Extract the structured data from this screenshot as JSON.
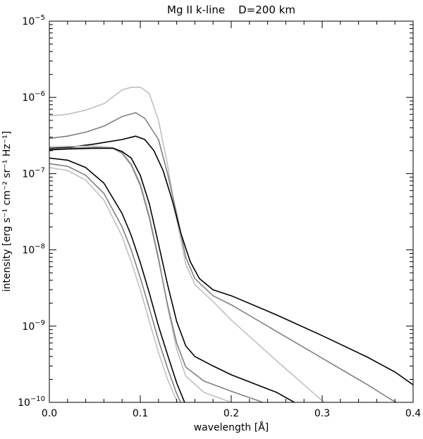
{
  "chart_data": {
    "type": "line",
    "title": "Mg II k-line    D=200 km",
    "xlabel": "wavelength [Å]",
    "ylabel": "intensity [erg s⁻¹ cm⁻² sr⁻¹ Hz⁻¹]",
    "xlim": [
      0.0,
      0.4
    ],
    "ylim": [
      1e-10,
      1e-05
    ],
    "yscale": "log",
    "xticks": [
      0.0,
      0.1,
      0.2,
      0.3,
      0.4
    ],
    "xtick_labels": [
      "0.0",
      "0.1",
      "0.2",
      "0.3",
      "0.4"
    ],
    "ytick_exponents": [
      -10,
      -9,
      -8,
      -7,
      -6,
      -5
    ],
    "grid": false,
    "series": [
      {
        "color": "#c0c0c0",
        "points": [
          [
            0,
            5.7e-07
          ],
          [
            0.02,
            6e-07
          ],
          [
            0.04,
            6.8e-07
          ],
          [
            0.06,
            8.3e-07
          ],
          [
            0.08,
            1.25e-06
          ],
          [
            0.09,
            1.36e-06
          ],
          [
            0.1,
            1.36e-06
          ],
          [
            0.11,
            1.12e-06
          ],
          [
            0.12,
            5e-07
          ],
          [
            0.13,
            1.3e-07
          ],
          [
            0.14,
            2.5e-08
          ],
          [
            0.15,
            6.5e-09
          ],
          [
            0.16,
            3.5e-09
          ],
          [
            0.18,
            2.1e-09
          ],
          [
            0.2,
            1.2e-09
          ],
          [
            0.25,
            3.5e-10
          ],
          [
            0.3,
            1.05e-10
          ],
          [
            0.31,
            8.5e-11
          ]
        ]
      },
      {
        "color": "#808080",
        "points": [
          [
            0,
            2.9e-07
          ],
          [
            0.02,
            3.1e-07
          ],
          [
            0.04,
            3.5e-07
          ],
          [
            0.06,
            4.2e-07
          ],
          [
            0.08,
            5.6e-07
          ],
          [
            0.095,
            6.3e-07
          ],
          [
            0.105,
            5.3e-07
          ],
          [
            0.12,
            2.8e-07
          ],
          [
            0.13,
            1e-07
          ],
          [
            0.14,
            3e-08
          ],
          [
            0.15,
            8e-09
          ],
          [
            0.16,
            4.2e-09
          ],
          [
            0.18,
            2.5e-09
          ],
          [
            0.2,
            1.9e-09
          ],
          [
            0.25,
            8.5e-10
          ],
          [
            0.3,
            3.8e-10
          ],
          [
            0.35,
            1.7e-10
          ],
          [
            0.375,
            1.1e-10
          ],
          [
            0.385,
            9.5e-11
          ]
        ]
      },
      {
        "color": "#000000",
        "points": [
          [
            0,
            2.15e-07
          ],
          [
            0.02,
            2.2e-07
          ],
          [
            0.05,
            2.45e-07
          ],
          [
            0.08,
            2.8e-07
          ],
          [
            0.095,
            3.1e-07
          ],
          [
            0.105,
            2.8e-07
          ],
          [
            0.115,
            2e-07
          ],
          [
            0.125,
            1.1e-07
          ],
          [
            0.135,
            4.5e-08
          ],
          [
            0.145,
            1.6e-08
          ],
          [
            0.155,
            7e-09
          ],
          [
            0.165,
            4.2e-09
          ],
          [
            0.18,
            3e-09
          ],
          [
            0.2,
            2.5e-09
          ],
          [
            0.25,
            1.4e-09
          ],
          [
            0.3,
            7.5e-10
          ],
          [
            0.35,
            3.9e-10
          ],
          [
            0.38,
            2.5e-10
          ],
          [
            0.4,
            1.7e-10
          ]
        ]
      },
      {
        "color": "#c0c0c0",
        "points": [
          [
            0,
            2.25e-07
          ],
          [
            0.02,
            2.28e-07
          ],
          [
            0.05,
            2.3e-07
          ],
          [
            0.07,
            2.2e-07
          ],
          [
            0.08,
            1.9e-07
          ],
          [
            0.09,
            1.35e-07
          ],
          [
            0.1,
            7.5e-08
          ],
          [
            0.11,
            2.8e-08
          ],
          [
            0.12,
            8e-09
          ],
          [
            0.13,
            1.8e-09
          ],
          [
            0.14,
            5e-10
          ],
          [
            0.15,
            2.2e-10
          ],
          [
            0.17,
            1.35e-10
          ],
          [
            0.2,
            1e-10
          ],
          [
            0.235,
            8e-11
          ]
        ]
      },
      {
        "color": "#808080",
        "points": [
          [
            0,
            2.1e-07
          ],
          [
            0.02,
            2.15e-07
          ],
          [
            0.05,
            2.2e-07
          ],
          [
            0.07,
            2.15e-07
          ],
          [
            0.08,
            1.85e-07
          ],
          [
            0.09,
            1.3e-07
          ],
          [
            0.1,
            7e-08
          ],
          [
            0.11,
            2.6e-08
          ],
          [
            0.12,
            7.5e-09
          ],
          [
            0.13,
            1.9e-09
          ],
          [
            0.14,
            6e-10
          ],
          [
            0.15,
            2.9e-10
          ],
          [
            0.17,
            1.9e-10
          ],
          [
            0.2,
            1.4e-10
          ],
          [
            0.23,
            1.05e-10
          ],
          [
            0.255,
            8e-11
          ]
        ]
      },
      {
        "color": "#000000",
        "points": [
          [
            0,
            2.05e-07
          ],
          [
            0.02,
            2.1e-07
          ],
          [
            0.05,
            2.15e-07
          ],
          [
            0.07,
            2.15e-07
          ],
          [
            0.08,
            1.95e-07
          ],
          [
            0.09,
            1.6e-07
          ],
          [
            0.1,
            9.5e-08
          ],
          [
            0.11,
            4e-08
          ],
          [
            0.12,
            1.2e-08
          ],
          [
            0.13,
            3.5e-09
          ],
          [
            0.14,
            1.15e-09
          ],
          [
            0.15,
            5.5e-10
          ],
          [
            0.16,
            4e-10
          ],
          [
            0.18,
            3e-10
          ],
          [
            0.2,
            2.3e-10
          ],
          [
            0.25,
            1.35e-10
          ],
          [
            0.28,
            8.5e-11
          ]
        ]
      },
      {
        "color": "#c0c0c0",
        "points": [
          [
            0,
            1.2e-07
          ],
          [
            0.02,
            1.1e-07
          ],
          [
            0.04,
            8.2e-08
          ],
          [
            0.06,
            4.5e-08
          ],
          [
            0.08,
            1.5e-08
          ],
          [
            0.09,
            7e-09
          ],
          [
            0.1,
            3e-09
          ],
          [
            0.11,
            1.15e-09
          ],
          [
            0.12,
            4.5e-10
          ],
          [
            0.13,
            2e-10
          ],
          [
            0.14,
            1.05e-10
          ],
          [
            0.146,
            8e-11
          ]
        ]
      },
      {
        "color": "#808080",
        "points": [
          [
            0,
            1.35e-07
          ],
          [
            0.02,
            1.25e-07
          ],
          [
            0.04,
            9.5e-08
          ],
          [
            0.06,
            5.5e-08
          ],
          [
            0.08,
            2e-08
          ],
          [
            0.09,
            1e-08
          ],
          [
            0.1,
            4.3e-09
          ],
          [
            0.11,
            1.7e-09
          ],
          [
            0.12,
            6.5e-10
          ],
          [
            0.13,
            2.8e-10
          ],
          [
            0.14,
            1.3e-10
          ],
          [
            0.148,
            8e-11
          ]
        ]
      },
      {
        "color": "#000000",
        "points": [
          [
            0,
            1.6e-07
          ],
          [
            0.02,
            1.5e-07
          ],
          [
            0.04,
            1.2e-07
          ],
          [
            0.06,
            7.5e-08
          ],
          [
            0.08,
            3e-08
          ],
          [
            0.09,
            1.55e-08
          ],
          [
            0.1,
            6.8e-09
          ],
          [
            0.11,
            2.7e-09
          ],
          [
            0.12,
            1e-09
          ],
          [
            0.13,
            4.2e-10
          ],
          [
            0.14,
            1.8e-10
          ],
          [
            0.152,
            8e-11
          ]
        ]
      }
    ]
  }
}
